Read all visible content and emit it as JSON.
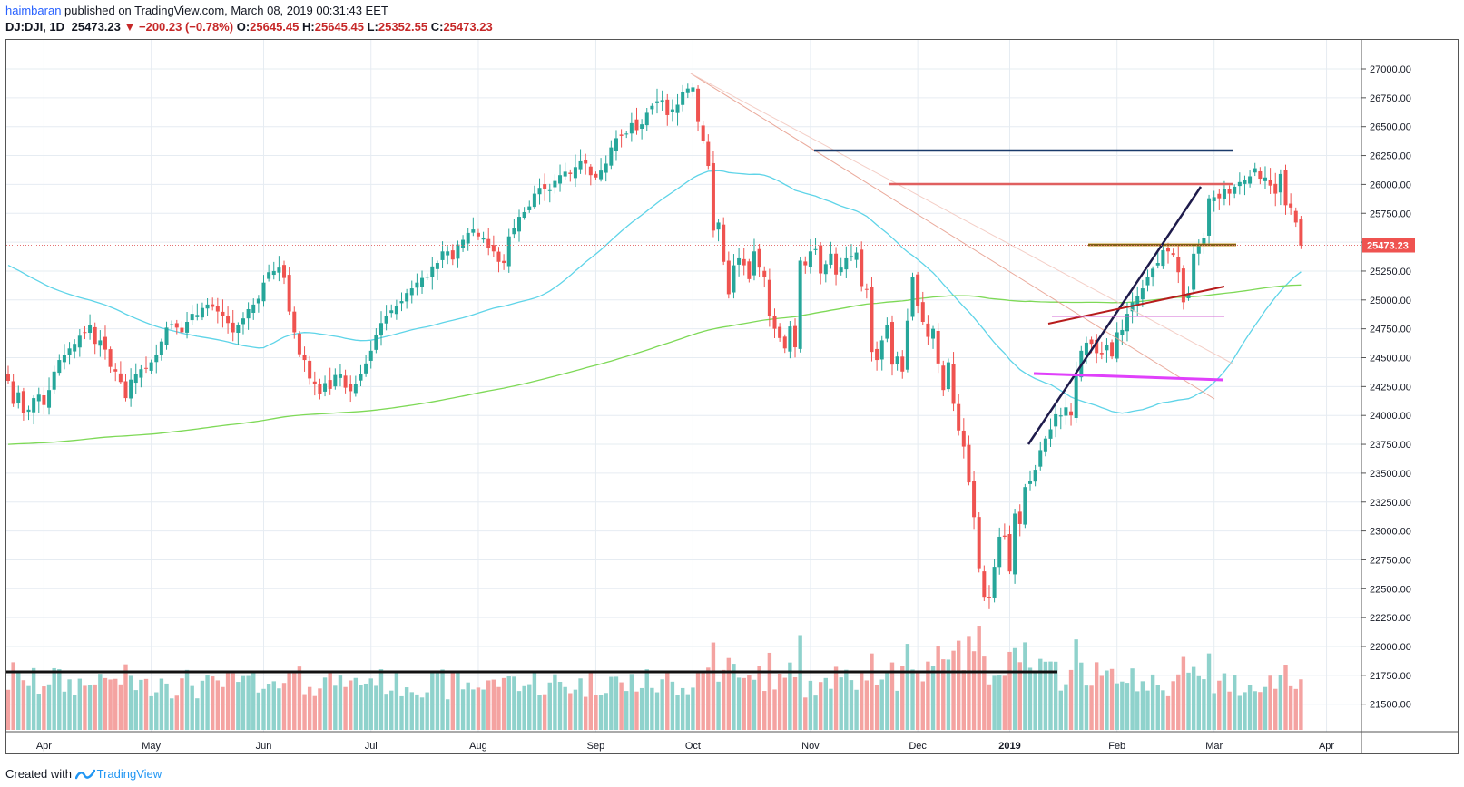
{
  "header": {
    "author": "haimbaran",
    "published_text": " published on TradingView.com, March 08, 2019 00:31:43 EET",
    "symbol": "DJ:DJI, 1D",
    "last": "25473.23",
    "change": "▼ −200.23 (−0.78%)",
    "open_label": "O:",
    "open": "25645.45",
    "high_label": "H:",
    "high": "25645.45",
    "low_label": "L:",
    "low": "25352.55",
    "close_label": "C:",
    "close": "25473.23"
  },
  "footer": {
    "created_with": "Created with",
    "brand": "TradingView"
  },
  "colors": {
    "up": "#26a69a",
    "down": "#ef5350",
    "vol_up": "#8fd2cc",
    "vol_down": "#f4a3a1",
    "ma50": "#5fd4e8",
    "ma200": "#7ed957",
    "grid": "#e6ecf2",
    "price_line": "#e57373"
  },
  "chart_data": {
    "type": "candlestick",
    "symbol": "DJ:DJI",
    "interval": "1D",
    "ylim": [
      21450,
      27150
    ],
    "y_ticks": [
      27000,
      26750,
      26500,
      26250,
      26000,
      25750,
      25500,
      25250,
      25000,
      24750,
      24500,
      24250,
      24000,
      23750,
      23500,
      23250,
      23000,
      22750,
      22500,
      22250,
      22000,
      21750,
      21500
    ],
    "y_tick_labels": [
      "27000.00",
      "26750.00",
      "26500.00",
      "26250.00",
      "26000.00",
      "25750.00",
      "25500.00",
      "25250.00",
      "25000.00",
      "24750.00",
      "24500.00",
      "24250.00",
      "24000.00",
      "23750.00",
      "23500.00",
      "23250.00",
      "23000.00",
      "22750.00",
      "22500.00",
      "22250.00",
      "22000.00",
      "21750.00",
      "21500.00"
    ],
    "x_ticks": [
      {
        "label": "Apr",
        "bar": 7,
        "bold": false
      },
      {
        "label": "May",
        "bar": 28,
        "bold": false
      },
      {
        "label": "Jun",
        "bar": 50,
        "bold": false
      },
      {
        "label": "Jul",
        "bar": 71,
        "bold": false
      },
      {
        "label": "Aug",
        "bar": 92,
        "bold": false
      },
      {
        "label": "Sep",
        "bar": 115,
        "bold": false
      },
      {
        "label": "Oct",
        "bar": 134,
        "bold": false
      },
      {
        "label": "Nov",
        "bar": 157,
        "bold": false
      },
      {
        "label": "Dec",
        "bar": 178,
        "bold": false
      },
      {
        "label": "2019",
        "bar": 196,
        "bold": true
      },
      {
        "label": "Feb",
        "bar": 217,
        "bold": false
      },
      {
        "label": "Mar",
        "bar": 236,
        "bold": false
      },
      {
        "label": "Apr",
        "bar": 258,
        "bold": false
      }
    ],
    "last_price": 25473.23,
    "last_price_label": "25473.23",
    "close": [
      24300,
      24100,
      24200,
      24020,
      24050,
      24150,
      24180,
      24090,
      24220,
      24380,
      24480,
      24520,
      24580,
      24620,
      24690,
      24720,
      24780,
      24620,
      24650,
      24570,
      24420,
      24380,
      24290,
      24150,
      24310,
      24360,
      24400,
      24410,
      24460,
      24520,
      24640,
      24760,
      24790,
      24760,
      24720,
      24810,
      24880,
      24870,
      24930,
      24960,
      24940,
      24900,
      24860,
      24800,
      24720,
      24780,
      24840,
      24920,
      24960,
      25010,
      25150,
      25240,
      25250,
      25280,
      25190,
      24900,
      24720,
      24530,
      24480,
      24320,
      24270,
      24190,
      24280,
      24230,
      24350,
      24360,
      24240,
      24210,
      24270,
      24360,
      24450,
      24560,
      24700,
      24800,
      24860,
      24910,
      24950,
      24990,
      25060,
      25100,
      25150,
      25190,
      25200,
      25290,
      25320,
      25420,
      25420,
      25350,
      25480,
      25520,
      25580,
      25610,
      25550,
      25540,
      25450,
      25420,
      25330,
      25320,
      25550,
      25620,
      25720,
      25760,
      25810,
      25920,
      25970,
      25960,
      25950,
      26030,
      26080,
      26110,
      26090,
      26150,
      26200,
      26180,
      26080,
      26060,
      26120,
      26180,
      26320,
      26400,
      26420,
      26440,
      26530,
      26470,
      26520,
      26620,
      26680,
      26720,
      26730,
      26600,
      26650,
      26690,
      26800,
      26830,
      26840,
      26540,
      26380,
      26160,
      25600,
      25670,
      25330,
      25050,
      25300,
      25360,
      25300,
      25180,
      25420,
      25280,
      25200,
      24860,
      24750,
      24670,
      24580,
      24770,
      24590,
      25340,
      25300,
      25420,
      25440,
      25230,
      25310,
      25400,
      25220,
      25280,
      25360,
      25380,
      25410,
      25120,
      25090,
      24550,
      24480,
      24650,
      24780,
      24440,
      24510,
      24380,
      24820,
      25200,
      24950,
      24810,
      24680,
      24750,
      24450,
      24220,
      24460,
      24100,
      23870,
      23730,
      23420,
      23120,
      22670,
      22430,
      22430,
      22690,
      22950,
      22950,
      22650,
      23150,
      23060,
      23380,
      23430,
      23530,
      23700,
      23800,
      23880,
      24010,
      24000,
      24070,
      24000,
      24360,
      24560,
      24630,
      24620,
      24540,
      24530,
      24610,
      24510,
      24720,
      24740,
      24880,
      24980,
      25030,
      25100,
      25200,
      25270,
      25320,
      25430,
      25420,
      25390,
      25240,
      24980,
      25060,
      25400,
      25480,
      25540,
      25880,
      25890,
      25880,
      25960,
      25920,
      25980,
      26020,
      26040,
      26070,
      26140,
      26050,
      26060,
      25990,
      25920,
      26090,
      25820,
      25800,
      25670,
      25470
    ],
    "ohlc_sample": {
      "open": 25645.45,
      "high": 25645.45,
      "low": 25352.55,
      "close": 25473.23
    }
  }
}
